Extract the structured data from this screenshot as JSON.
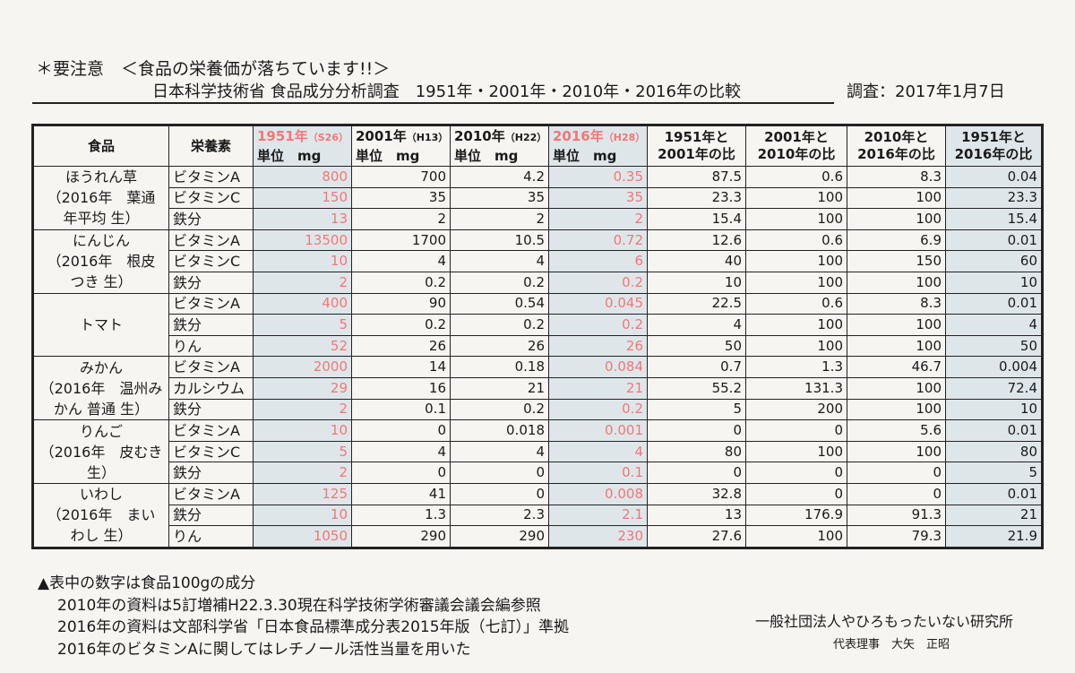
{
  "header": {
    "notice": "＊要注意　＜食品の栄養価が落ちています!!＞",
    "subtitle": "日本科学技術省 食品成分分析調査　1951年・2001年・2010年・2016年の比較",
    "date": "調査：2017年1月7日"
  },
  "table": {
    "columns": [
      {
        "text": "食品"
      },
      {
        "text": "栄養素"
      },
      {
        "year": "1951年",
        "era": "（S26）",
        "unit": "単位　mg"
      },
      {
        "year": "2001年",
        "era": "（H13）",
        "unit": "単位　mg"
      },
      {
        "year": "2010年",
        "era": "（H22）",
        "unit": "単位　mg"
      },
      {
        "year": "2016年",
        "era": "（H28）",
        "unit": "単位　mg"
      },
      {
        "lines": [
          "1951年と",
          "2001年の比"
        ]
      },
      {
        "lines": [
          "2001年と",
          "2010年の比"
        ]
      },
      {
        "lines": [
          "2010年と",
          "2016年の比"
        ]
      },
      {
        "lines": [
          "1951年と",
          "2016年の比"
        ]
      }
    ],
    "groups": [
      {
        "food": [
          "ほうれん草",
          "（2016年　葉通",
          "年平均 生）"
        ],
        "rows": [
          [
            "ビタミンA",
            800,
            700,
            4.2,
            0.35,
            87.5,
            0.6,
            8.3,
            0.04
          ],
          [
            "ビタミンC",
            150,
            35,
            35,
            35,
            23.3,
            100,
            100,
            23.3
          ],
          [
            "鉄分",
            13,
            2,
            2,
            2,
            15.4,
            100,
            100,
            15.4
          ]
        ]
      },
      {
        "food": [
          "にんじん",
          "（2016年　根皮",
          "つき 生）"
        ],
        "rows": [
          [
            "ビタミンA",
            13500,
            1700,
            10.5,
            0.72,
            12.6,
            0.6,
            6.9,
            0.01
          ],
          [
            "ビタミンC",
            10,
            4,
            4,
            6,
            40,
            100,
            150,
            60
          ],
          [
            "鉄分",
            2,
            0.2,
            0.2,
            0.2,
            10,
            100,
            100,
            10
          ]
        ]
      },
      {
        "food": [
          "トマト"
        ],
        "rows": [
          [
            "ビタミンA",
            400,
            90,
            0.54,
            0.045,
            22.5,
            0.6,
            8.3,
            0.01
          ],
          [
            "鉄分",
            5,
            0.2,
            0.2,
            0.2,
            4,
            100,
            100,
            4
          ],
          [
            "りん",
            52,
            26,
            26,
            26,
            50,
            100,
            100,
            50
          ]
        ]
      },
      {
        "food": [
          "みかん",
          "（2016年　温州み",
          "かん 普通 生）"
        ],
        "rows": [
          [
            "ビタミンA",
            2000,
            14,
            0.18,
            0.084,
            0.7,
            1.3,
            46.7,
            0.004
          ],
          [
            "カルシウム",
            29,
            16,
            21,
            21,
            55.2,
            131.3,
            100,
            72.4
          ],
          [
            "鉄分",
            2,
            0.1,
            0.2,
            0.2,
            5,
            200,
            100,
            10
          ]
        ]
      },
      {
        "food": [
          "りんご",
          "（2016年　皮むき",
          "生）"
        ],
        "rows": [
          [
            "ビタミンA",
            10,
            0,
            0.018,
            0.001,
            0,
            0,
            5.6,
            0.01
          ],
          [
            "ビタミンC",
            5,
            4,
            4,
            4,
            80,
            100,
            100,
            80
          ],
          [
            "鉄分",
            2,
            0,
            0,
            0.1,
            0,
            0,
            0,
            5
          ]
        ]
      },
      {
        "food": [
          "いわし",
          "（2016年　まい",
          "わし 生）"
        ],
        "rows": [
          [
            "ビタミンA",
            125,
            41,
            0,
            0.008,
            32.8,
            0,
            0,
            0.01
          ],
          [
            "鉄分",
            10,
            1.3,
            2.3,
            2.1,
            13,
            176.9,
            91.3,
            21
          ],
          [
            "りん",
            1050,
            290,
            290,
            230,
            27.6,
            100,
            79.3,
            21.9
          ]
        ]
      }
    ]
  },
  "notes": [
    "▲表中の数字は食品100gの成分",
    "2010年の資料は5訂増補H22.3.30現在科学技術学術審議会議会編参照",
    "2016年の資料は文部科学省「日本食品標準成分表2015年版（七訂）」準拠",
    "2016年のビタミンAに関してはレチノール活性当量を用いた"
  ],
  "organization": {
    "name": "一般社団法人やひろもったいない研究所",
    "representative": "代表理事　大矢　正昭"
  }
}
